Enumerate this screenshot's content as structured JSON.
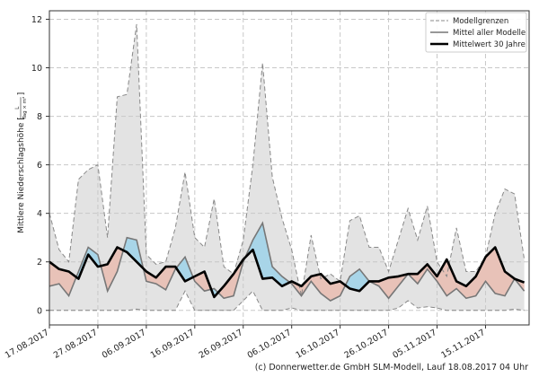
{
  "chart_data": {
    "type": "line",
    "ylabel": "Mittlere Niederschlagshöhe",
    "yunit": {
      "numerator": "L",
      "denominator": "Tag × m²"
    },
    "ylim": [
      -0.6,
      12.35
    ],
    "yticks": [
      0,
      2,
      4,
      6,
      8,
      10,
      12
    ],
    "xlim": [
      "2017-08-17",
      "2017-11-24"
    ],
    "xticks": [
      {
        "date": "2017-08-17",
        "label": "17.08.2017"
      },
      {
        "date": "2017-08-27",
        "label": "27.08.2017"
      },
      {
        "date": "2017-09-06",
        "label": "06.09.2017"
      },
      {
        "date": "2017-09-16",
        "label": "16.09.2017"
      },
      {
        "date": "2017-09-26",
        "label": "26.09.2017"
      },
      {
        "date": "2017-10-06",
        "label": "06.10.2017"
      },
      {
        "date": "2017-10-16",
        "label": "16.10.2017"
      },
      {
        "date": "2017-10-26",
        "label": "26.10.2017"
      },
      {
        "date": "2017-11-05",
        "label": "05.11.2017"
      },
      {
        "date": "2017-11-15",
        "label": "15.11.2017"
      }
    ],
    "grid": true,
    "legend_position": "top-right",
    "x": [
      "2017-08-17",
      "2017-08-19",
      "2017-08-21",
      "2017-08-23",
      "2017-08-25",
      "2017-08-27",
      "2017-08-29",
      "2017-08-31",
      "2017-09-02",
      "2017-09-04",
      "2017-09-06",
      "2017-09-08",
      "2017-09-10",
      "2017-09-12",
      "2017-09-14",
      "2017-09-16",
      "2017-09-18",
      "2017-09-20",
      "2017-09-22",
      "2017-09-24",
      "2017-09-26",
      "2017-09-28",
      "2017-09-30",
      "2017-10-02",
      "2017-10-04",
      "2017-10-06",
      "2017-10-08",
      "2017-10-10",
      "2017-10-12",
      "2017-10-14",
      "2017-10-16",
      "2017-10-18",
      "2017-10-20",
      "2017-10-22",
      "2017-10-24",
      "2017-10-26",
      "2017-10-28",
      "2017-10-30",
      "2017-11-01",
      "2017-11-03",
      "2017-11-05",
      "2017-11-07",
      "2017-11-09",
      "2017-11-11",
      "2017-11-13",
      "2017-11-15",
      "2017-11-17",
      "2017-11-19",
      "2017-11-21",
      "2017-11-23"
    ],
    "series": [
      {
        "name": "Modellgrenzen",
        "role": "upper",
        "style": "dashed",
        "color": "#888888",
        "values": [
          4.0,
          2.5,
          2.0,
          5.4,
          5.8,
          6.0,
          3.0,
          8.8,
          8.9,
          11.8,
          2.3,
          1.9,
          2.0,
          3.4,
          5.7,
          3.0,
          2.6,
          4.6,
          1.8,
          1.5,
          2.9,
          6.0,
          10.2,
          5.5,
          3.8,
          2.5,
          0.6,
          3.1,
          1.3,
          1.5,
          1.2,
          3.7,
          3.9,
          2.6,
          2.6,
          1.6,
          2.9,
          4.2,
          2.9,
          4.3,
          2.0,
          1.4,
          3.4,
          1.6,
          1.6,
          2.2,
          4.0,
          5.0,
          4.8,
          2.1
        ]
      },
      {
        "name": "Modellgrenzen",
        "role": "lower",
        "style": "dashed",
        "color": "#888888",
        "values": [
          0,
          0,
          0,
          0,
          0,
          0,
          0,
          0,
          0,
          0.05,
          0,
          0,
          0,
          0,
          0.8,
          0,
          0,
          0,
          0,
          0,
          0.4,
          0.8,
          0,
          0,
          0,
          0.1,
          0,
          0,
          0,
          0,
          0,
          0,
          0,
          0,
          0,
          0,
          0.1,
          0.4,
          0.1,
          0.15,
          0.1,
          0,
          0,
          0,
          0,
          0,
          0,
          0,
          0.05,
          0
        ]
      },
      {
        "name": "Mittel aller Modelle",
        "role": "mean",
        "style": "solid",
        "color": "#777777",
        "values": [
          1.0,
          1.1,
          0.6,
          1.6,
          2.6,
          2.3,
          0.8,
          1.6,
          3.0,
          2.9,
          1.2,
          1.1,
          0.85,
          1.7,
          2.2,
          1.2,
          0.8,
          0.9,
          0.5,
          0.6,
          2.0,
          2.9,
          3.6,
          1.8,
          1.4,
          1.1,
          0.6,
          1.2,
          0.7,
          0.4,
          0.6,
          1.4,
          1.7,
          1.2,
          1.0,
          0.5,
          1.0,
          1.5,
          1.1,
          1.7,
          1.2,
          0.6,
          0.9,
          0.5,
          0.6,
          1.2,
          0.7,
          0.6,
          1.3,
          0.8
        ]
      },
      {
        "name": "Mittelwert 30 Jahre",
        "role": "climate",
        "style": "solid-bold",
        "color": "#000000",
        "values": [
          2.0,
          1.7,
          1.6,
          1.3,
          2.3,
          1.8,
          1.9,
          2.6,
          2.4,
          2.0,
          1.6,
          1.35,
          1.8,
          1.8,
          1.2,
          1.4,
          1.6,
          0.55,
          1.0,
          1.5,
          2.1,
          2.5,
          1.3,
          1.35,
          1.0,
          1.2,
          1.0,
          1.4,
          1.5,
          1.1,
          1.2,
          0.9,
          0.8,
          1.2,
          1.2,
          1.35,
          1.4,
          1.5,
          1.5,
          1.9,
          1.4,
          2.1,
          1.2,
          1.0,
          1.4,
          2.2,
          2.6,
          1.6,
          1.3,
          1.15
        ]
      }
    ],
    "colors": {
      "range_fill": "#e3e3e3",
      "above_climate": "#a8d5e8",
      "below_climate": "#e8c2b8",
      "grid": "#c8c8c8"
    },
    "legend": [
      "Modellgrenzen",
      "Mittel aller Modelle",
      "Mittelwert 30 Jahre"
    ]
  },
  "footer": "(c) Donnerwetter.de GmbH SLM-Modell, Lauf 18.08.2017 04 Uhr"
}
